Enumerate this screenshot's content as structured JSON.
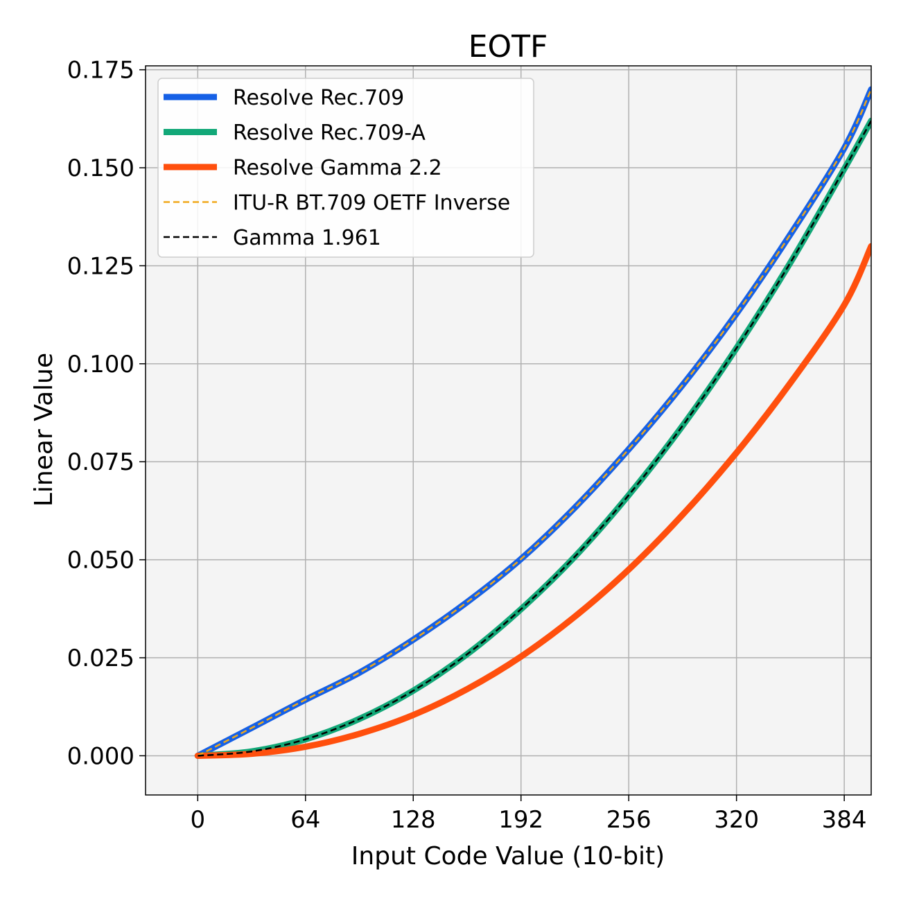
{
  "chart_data": {
    "type": "line",
    "title": "EOTF",
    "xlabel": "Input Code Value (10-bit)",
    "ylabel": "Linear Value",
    "xlim": [
      -31,
      400
    ],
    "ylim": [
      -0.01,
      0.176
    ],
    "xticks": [
      0,
      64,
      128,
      192,
      256,
      320,
      384
    ],
    "yticks": [
      0.0,
      0.025,
      0.05,
      0.075,
      0.1,
      0.125,
      0.15,
      0.175
    ],
    "xtick_labels": [
      "0",
      "64",
      "128",
      "192",
      "256",
      "320",
      "384"
    ],
    "ytick_labels": [
      "0.000",
      "0.025",
      "0.050",
      "0.075",
      "0.100",
      "0.125",
      "0.150",
      "0.175"
    ],
    "grid": true,
    "legend_position": "upper-left",
    "x": [
      0,
      32,
      64,
      96,
      128,
      160,
      192,
      224,
      256,
      288,
      320,
      352,
      384,
      400
    ],
    "series": [
      {
        "name": "Resolve Rec.709",
        "color": "#1560e6",
        "style": "solid-thick",
        "values": [
          0.0,
          0.0071,
          0.0143,
          0.0212,
          0.0296,
          0.0392,
          0.0502,
          0.0633,
          0.0782,
          0.0946,
          0.1128,
          0.133,
          0.155,
          0.17
        ]
      },
      {
        "name": "Resolve Rec.709-A",
        "color": "#12a878",
        "style": "solid-thick",
        "values": [
          0.0,
          0.0011,
          0.0042,
          0.0094,
          0.0166,
          0.0259,
          0.0374,
          0.0508,
          0.0665,
          0.0842,
          0.104,
          0.1258,
          0.1497,
          0.162
        ]
      },
      {
        "name": "Resolve Gamma 2.2",
        "color": "#ff4f0d",
        "style": "solid-thick",
        "values": [
          0.0,
          0.0005,
          0.0023,
          0.0056,
          0.0104,
          0.017,
          0.0253,
          0.0355,
          0.0475,
          0.0615,
          0.0773,
          0.0951,
          0.115,
          0.13
        ]
      },
      {
        "name": "ITU-R BT.709 OETF Inverse",
        "color": "#f0a81a",
        "style": "dashed",
        "values": [
          0.0,
          0.0071,
          0.0143,
          0.0212,
          0.0296,
          0.0392,
          0.0502,
          0.0633,
          0.0782,
          0.0946,
          0.1128,
          0.133,
          0.155,
          0.17
        ]
      },
      {
        "name": "Gamma 1.961",
        "color": "#000000",
        "style": "dashed",
        "values": [
          0.0,
          0.0011,
          0.0042,
          0.0094,
          0.0166,
          0.0259,
          0.0374,
          0.0508,
          0.0665,
          0.0842,
          0.104,
          0.1258,
          0.1497,
          0.162
        ]
      }
    ]
  }
}
